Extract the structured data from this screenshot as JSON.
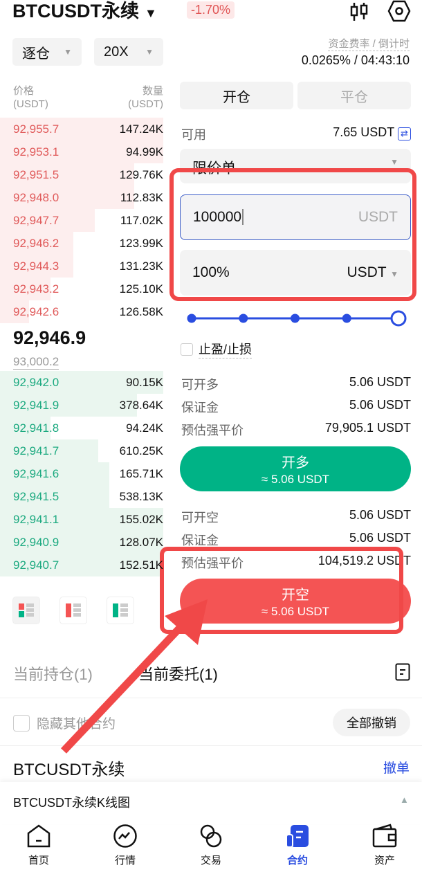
{
  "header": {
    "title": "BTCUSDT永续",
    "change": "-1.70%",
    "margin_mode": "逐仓",
    "leverage": "20X",
    "funding_label": "资金费率 / 倒计时",
    "funding_value": "0.0265% /  04:43:10"
  },
  "orderbook": {
    "price_header": "价格",
    "qty_header": "数量",
    "unit": "(USDT)",
    "asks": [
      {
        "price": "92,955.7",
        "qty": "147.24K",
        "depth": 1.0
      },
      {
        "price": "92,953.1",
        "qty": "94.99K",
        "depth": 1.0
      },
      {
        "price": "92,951.5",
        "qty": "129.76K",
        "depth": 0.82
      },
      {
        "price": "92,948.0",
        "qty": "112.83K",
        "depth": 0.82
      },
      {
        "price": "92,947.7",
        "qty": "117.02K",
        "depth": 0.58
      },
      {
        "price": "92,946.2",
        "qty": "123.99K",
        "depth": 0.45
      },
      {
        "price": "92,944.3",
        "qty": "131.23K",
        "depth": 0.45
      },
      {
        "price": "92,943.2",
        "qty": "125.10K",
        "depth": 0.31
      },
      {
        "price": "92,942.6",
        "qty": "126.58K",
        "depth": 0.18
      }
    ],
    "last_price": "92,946.9",
    "mark_price": "93,000.2",
    "bids": [
      {
        "price": "92,942.0",
        "qty": "90.15K",
        "depth": 1.0
      },
      {
        "price": "92,941.9",
        "qty": "378.64K",
        "depth": 0.84
      },
      {
        "price": "92,941.8",
        "qty": "94.24K",
        "depth": 0.31
      },
      {
        "price": "92,941.7",
        "qty": "610.25K",
        "depth": 0.6
      },
      {
        "price": "92,941.6",
        "qty": "165.71K",
        "depth": 0.67
      },
      {
        "price": "92,941.5",
        "qty": "538.13K",
        "depth": 0.67
      },
      {
        "price": "92,941.1",
        "qty": "155.02K",
        "depth": 1.0
      },
      {
        "price": "92,940.9",
        "qty": "128.07K",
        "depth": 1.0
      },
      {
        "price": "92,940.7",
        "qty": "152.51K",
        "depth": 1.0
      }
    ]
  },
  "trade": {
    "tab_open": "开仓",
    "tab_close": "平仓",
    "available_label": "可用",
    "available_value": "7.65 USDT",
    "order_type": "限价单",
    "price_value": "100000",
    "price_unit": "USDT",
    "amount_value": "100%",
    "amount_unit": "USDT",
    "slider_percent": 100,
    "tpsl_label": "止盈/止损",
    "long": {
      "rows": [
        {
          "k": "可开多",
          "v": "5.06 USDT"
        },
        {
          "k": "保证金",
          "v": "5.06 USDT"
        },
        {
          "k": "预估强平价",
          "v": "79,905.1 USDT"
        }
      ],
      "button": "开多",
      "sub": "≈ 5.06 USDT"
    },
    "short": {
      "rows": [
        {
          "k": "可开空",
          "v": "5.06 USDT"
        },
        {
          "k": "保证金",
          "v": "5.06 USDT"
        },
        {
          "k": "预估强平价",
          "v": "104,519.2 USDT"
        }
      ],
      "button": "开空",
      "sub": "≈ 5.06 USDT"
    }
  },
  "positions": {
    "tab_positions": "当前持仓(1)",
    "tab_orders": "当前委托(1)",
    "hide_other": "隐藏其他合约",
    "cancel_all": "全部撤销",
    "symbol": "BTCUSDT永续",
    "cancel": "撤单",
    "kline": "BTCUSDT永续K线图"
  },
  "nav": [
    {
      "label": "首页"
    },
    {
      "label": "行情"
    },
    {
      "label": "交易"
    },
    {
      "label": "合约"
    },
    {
      "label": "资产"
    }
  ],
  "colors": {
    "ask": "#e05a5a",
    "bid": "#1ba97f",
    "long": "#00b386",
    "short": "#f45454",
    "accent": "#2a4de0",
    "annotation": "#f04848"
  }
}
